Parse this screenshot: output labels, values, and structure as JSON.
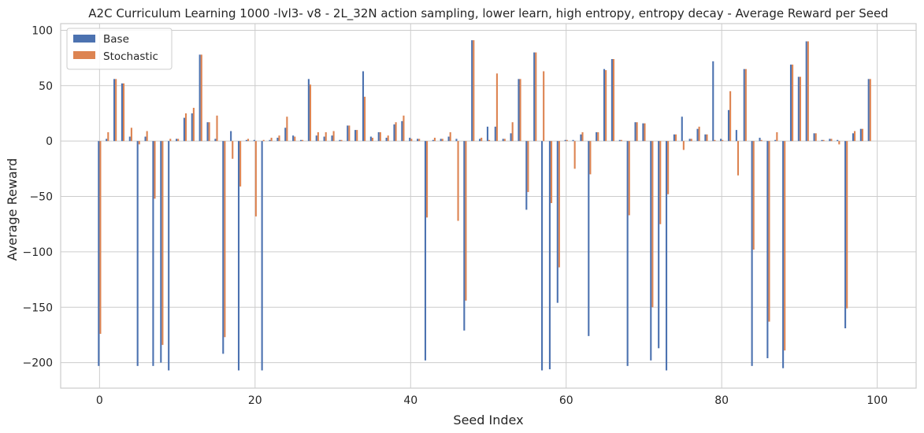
{
  "chart_data": {
    "type": "bar",
    "title": "A2C Curriculum Learning 1000 -lvl3- v8 - 2L_32N action sampling, lower learn, high entropy, entropy decay - Average Reward per Seed",
    "xlabel": "Seed Index",
    "ylabel": "Average Reward",
    "xlim": [
      -5,
      105
    ],
    "ylim": [
      -223,
      106
    ],
    "xticks": [
      0,
      20,
      40,
      60,
      80,
      100
    ],
    "yticks": [
      -200,
      -150,
      -100,
      -50,
      0,
      50,
      100
    ],
    "grid": true,
    "legend_position": "top-left",
    "x": [
      0,
      1,
      2,
      3,
      4,
      5,
      6,
      7,
      8,
      9,
      10,
      11,
      12,
      13,
      14,
      15,
      16,
      17,
      18,
      19,
      20,
      21,
      22,
      23,
      24,
      25,
      26,
      27,
      28,
      29,
      30,
      31,
      32,
      33,
      34,
      35,
      36,
      37,
      38,
      39,
      40,
      41,
      42,
      43,
      44,
      45,
      46,
      47,
      48,
      49,
      50,
      51,
      52,
      53,
      54,
      55,
      56,
      57,
      58,
      59,
      60,
      61,
      62,
      63,
      64,
      65,
      66,
      67,
      68,
      69,
      70,
      71,
      72,
      73,
      74,
      75,
      76,
      77,
      78,
      79,
      80,
      81,
      82,
      83,
      84,
      85,
      86,
      87,
      88,
      89,
      90,
      91,
      92,
      93,
      94,
      95,
      96,
      97,
      98,
      99
    ],
    "series": [
      {
        "name": "Base",
        "color": "#4c72b0",
        "values": [
          -203,
          2,
          56,
          52,
          4,
          -203,
          4,
          -203,
          -200,
          -207,
          2,
          21,
          25,
          78,
          17,
          2,
          -192,
          9,
          -207,
          1,
          1,
          -207,
          1,
          3,
          12,
          5,
          1,
          56,
          5,
          4,
          5,
          1,
          14,
          10,
          63,
          4,
          8,
          3,
          15,
          18,
          3,
          2,
          -198,
          1,
          2,
          4,
          2,
          -171,
          91,
          2,
          13,
          13,
          2,
          7,
          56,
          -62,
          80,
          -207,
          -206,
          -146,
          1,
          1,
          6,
          -176,
          8,
          65,
          74,
          1,
          -203,
          17,
          16,
          -198,
          -187,
          -207,
          6,
          22,
          2,
          11,
          6,
          72,
          2,
          28,
          10,
          65,
          -203,
          3,
          -196,
          1,
          -205,
          69,
          58,
          90,
          7,
          1,
          2,
          1,
          -169,
          7,
          11,
          56
        ]
      },
      {
        "name": "Stochastic",
        "color": "#dd8452",
        "values": [
          -174,
          8,
          56,
          52,
          12,
          -3,
          9,
          -52,
          -184,
          2,
          2,
          25,
          30,
          78,
          17,
          23,
          -177,
          -16,
          -41,
          2,
          -68,
          1,
          3,
          5,
          22,
          4,
          1,
          51,
          8,
          8,
          9,
          1,
          14,
          10,
          40,
          3,
          8,
          5,
          17,
          23,
          2,
          2,
          -69,
          3,
          2,
          8,
          -72,
          -144,
          91,
          3,
          1,
          61,
          2,
          17,
          56,
          -46,
          80,
          63,
          -56,
          -114,
          1,
          -25,
          8,
          -30,
          8,
          64,
          74,
          1,
          -67,
          17,
          16,
          -150,
          -75,
          -48,
          6,
          -8,
          2,
          13,
          6,
          1,
          1,
          45,
          -31,
          65,
          -98,
          1,
          -163,
          8,
          -189,
          69,
          58,
          90,
          7,
          1,
          2,
          -3,
          -151,
          9,
          11,
          56
        ]
      }
    ]
  }
}
